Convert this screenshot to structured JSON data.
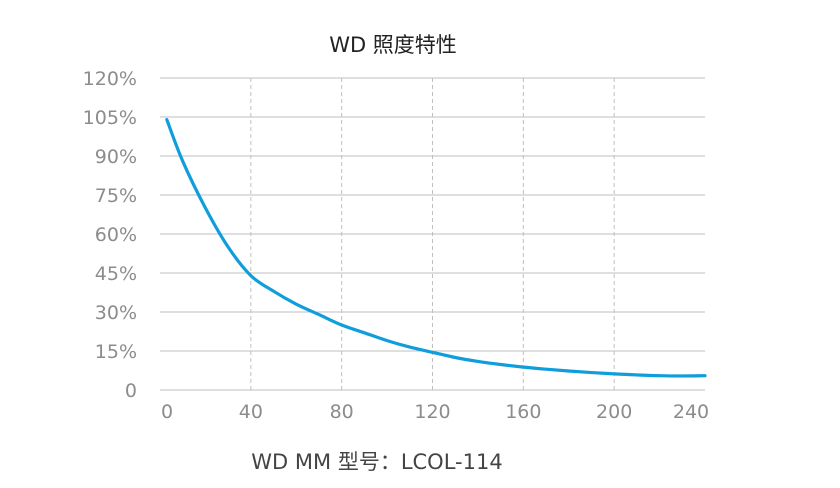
{
  "chart_data": {
    "type": "line",
    "title": "WD 照度特性",
    "xlabel": "WD MM 型号：LCOL-114",
    "ylabel": "",
    "x_ticks": [
      "0",
      "40",
      "80",
      "120",
      "160",
      "200",
      "240"
    ],
    "y_ticks": [
      "0",
      "15%",
      "30%",
      "45%",
      "60%",
      "75%",
      "90%",
      "105%",
      "120%"
    ],
    "xlim": [
      0,
      240
    ],
    "ylim": [
      0,
      120
    ],
    "grid": {
      "horizontal": "solid",
      "vertical": "dashed"
    },
    "legend": "none",
    "colors": {
      "series": "#0f9ddb",
      "grid": "#bfbfbf",
      "tick": "#8c8c8c",
      "title": "#222222"
    },
    "series": [
      {
        "x": [
          3,
          10,
          20,
          30,
          40,
          50,
          60,
          70,
          80,
          90,
          100,
          110,
          120,
          130,
          140,
          150,
          160,
          170,
          180,
          190,
          200,
          210,
          220,
          230,
          240
        ],
        "values": [
          104,
          88,
          70,
          55,
          44,
          38,
          33,
          29,
          25,
          22,
          19,
          16.5,
          14.5,
          12.5,
          11,
          9.8,
          8.8,
          8,
          7.3,
          6.7,
          6.2,
          5.8,
          5.5,
          5.4,
          5.5
        ]
      }
    ]
  }
}
